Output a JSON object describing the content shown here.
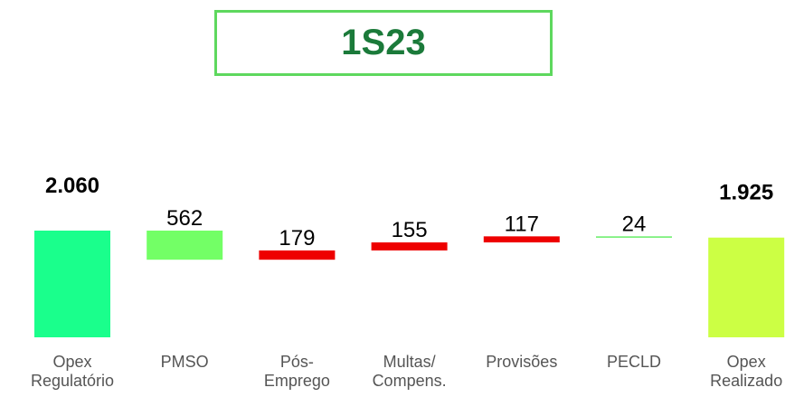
{
  "chart_data": {
    "type": "waterfall",
    "title": "1S23",
    "categories": [
      "Opex Regulatório",
      "PMSO",
      "Pós-Emprego",
      "Multas/ Compens.",
      "Provisões",
      "PECLD",
      "Opex Realizado"
    ],
    "values": [
      2060,
      562,
      179,
      155,
      117,
      24,
      1925
    ],
    "value_labels": [
      "2.060",
      "562",
      "179",
      "155",
      "117",
      "24",
      "1.925"
    ],
    "measures": [
      "absolute",
      "decrease",
      "increase",
      "increase",
      "increase",
      "decrease",
      "total"
    ],
    "colors": [
      "#1aff8c",
      "#73ff66",
      "#ee0000",
      "#ee0000",
      "#ee0000",
      "#66ee66",
      "#ccff44"
    ]
  }
}
